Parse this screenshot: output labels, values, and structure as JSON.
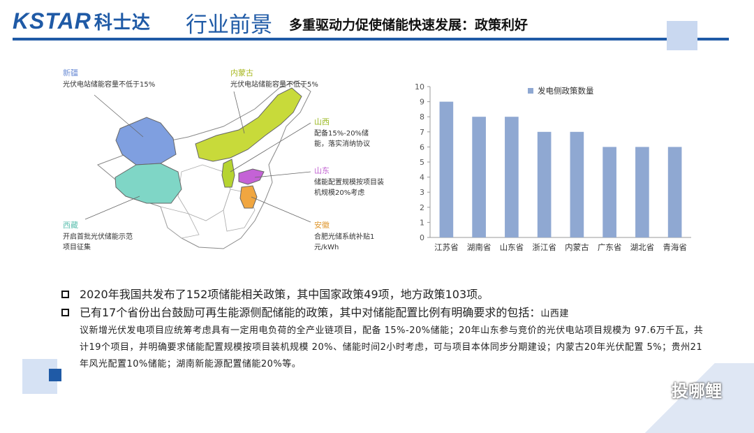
{
  "header": {
    "logo_brand": "KSTAR",
    "logo_cn": "科士达",
    "section_title": "行业前景",
    "subtitle": "多重驱动力促使储能快速发展：政策利好"
  },
  "map": {
    "regions": [
      {
        "name": "新疆",
        "desc": "光伏电站储能容量不低于15%"
      },
      {
        "name": "内蒙古",
        "desc": "光伏电站储能容量不低于5%"
      },
      {
        "name": "山西",
        "desc": "配备15%-20%储能，落实消纳协议"
      },
      {
        "name": "山东",
        "desc": "储能配置规模按项目装机规模20%考虑"
      },
      {
        "name": "西藏",
        "desc": "开启首批光伏储能示范项目征集"
      },
      {
        "name": "安徽",
        "desc": "合肥光储系统补贴1元/kWh"
      }
    ]
  },
  "chart_data": {
    "type": "bar",
    "categories": [
      "江苏省",
      "湖南省",
      "山东省",
      "浙江省",
      "内蒙古",
      "广东省",
      "湖北省",
      "青海省"
    ],
    "series": [
      {
        "name": "发电侧政策数量",
        "values": [
          9,
          8,
          8,
          7,
          7,
          6,
          6,
          6
        ]
      }
    ],
    "ylim": [
      0,
      10
    ],
    "yticks": [
      0,
      1,
      2,
      3,
      4,
      5,
      6,
      7,
      8,
      9,
      10
    ],
    "legend": "top-center",
    "grid": false,
    "color": "#8fa8d2"
  },
  "bullets": {
    "b1": "2020年我国共发布了152项储能相关政策，其中国家政策49项，地方政策103项。",
    "b2_lead": "已有17个省份出台鼓励可再生能源侧配储能的政策，其中对储能配置比例有明确要求的包括：",
    "b2_small": "山西建",
    "b2_rest": "议新增光伏发电项目应统筹考虑具有一定用电负荷的全产业链项目，配备 15%-20%储能；20年山东参与竞价的光伏电站项目规模为 97.6万千瓦，共计19个项目，并明确要求储能配置规模按项目装机规模 20%、储能时间2小时考虑，可与项目本体同步分期建设；内蒙古20年光伏配置 5%；贵州21年风光配置10%储能；湖南新能源配置储能20%等。"
  },
  "watermark": "投哪鲤"
}
